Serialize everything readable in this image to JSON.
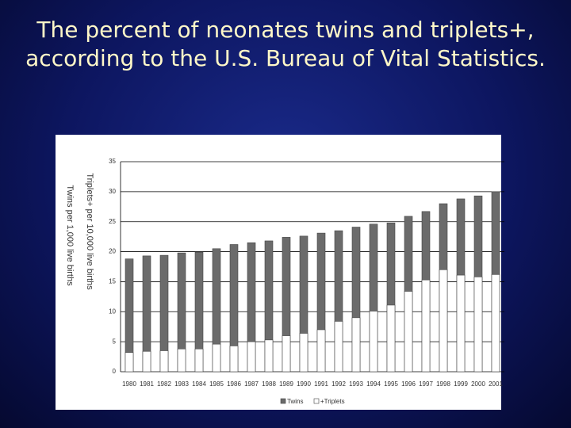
{
  "chart_data": {
    "type": "overlay_bar",
    "title": "The percent of neonates twins and triplets+, according to the U.S. Bureau of Vital Statistics.",
    "ylabel": [
      "Triplets+ per 10,000 live births",
      "Twins per 1,000 live births"
    ],
    "categories": [
      "1980",
      "1981",
      "1982",
      "1983",
      "1984",
      "1985",
      "1986",
      "1987",
      "1988",
      "1989",
      "1990",
      "1991",
      "1992",
      "1993",
      "1994",
      "1995",
      "1996",
      "1997",
      "1998",
      "1999",
      "2000",
      "2001"
    ],
    "series": [
      {
        "name": "Twins",
        "color": "#6b6b6b",
        "values": [
          18.8,
          19.3,
          19.4,
          19.8,
          19.9,
          20.5,
          21.2,
          21.5,
          21.8,
          22.4,
          22.6,
          23.1,
          23.5,
          24.1,
          24.6,
          24.8,
          25.9,
          26.7,
          28.0,
          28.8,
          29.3,
          30.0
        ]
      },
      {
        "name": "+Triplets",
        "color": "#ffffff",
        "values": [
          3.2,
          3.4,
          3.5,
          3.8,
          3.8,
          4.6,
          4.3,
          5.0,
          5.3,
          6.0,
          6.4,
          7.0,
          8.4,
          9.0,
          10.1,
          11.1,
          13.4,
          15.3,
          17.0,
          16.1,
          15.8,
          16.2
        ]
      }
    ],
    "ylim": [
      0,
      35
    ],
    "yticks": [
      0,
      5,
      10,
      15,
      20,
      25,
      30,
      35
    ],
    "grid": true,
    "legend": "bottom"
  }
}
